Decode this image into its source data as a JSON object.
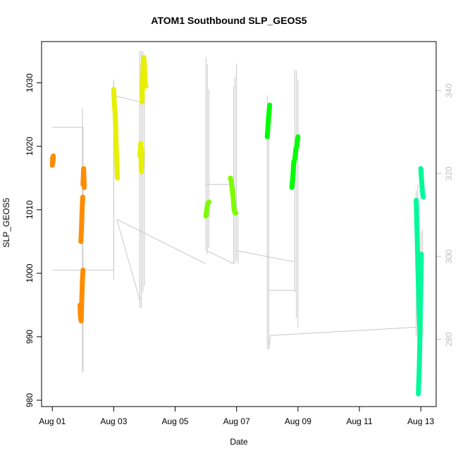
{
  "chart_data": {
    "type": "line",
    "title": "ATOM1 Southbound SLP_GEOS5",
    "xlabel": "Date",
    "ylabel": "SLP_GEOS5",
    "xlim": [
      -0.35,
      12.5
    ],
    "ylim": [
      979,
      1036.5
    ],
    "y2lim": [
      263.8,
      351.8
    ],
    "x_ticks": [
      {
        "value": 0,
        "label": "Aug 01"
      },
      {
        "value": 2,
        "label": "Aug 03"
      },
      {
        "value": 4,
        "label": "Aug 05"
      },
      {
        "value": 6,
        "label": "Aug 07"
      },
      {
        "value": 8,
        "label": "Aug 09"
      },
      {
        "value": 10,
        "label": "Aug 11"
      },
      {
        "value": 12,
        "label": "Aug 13"
      }
    ],
    "y_ticks": [
      980,
      990,
      1000,
      1010,
      1020,
      1030
    ],
    "y2_ticks": [
      280,
      300,
      320,
      340
    ],
    "grid": false,
    "background_series": {
      "name": "track",
      "color": "#c8c8c8",
      "x": [
        0.0,
        0.0,
        1.0,
        1.0,
        0.98,
        1.0,
        2.0,
        2.1,
        2.0,
        2.0,
        2.85,
        2.9,
        2.85,
        2.95,
        2.9,
        2.15,
        2.1,
        5.0,
        5.0,
        6.0,
        5.95,
        6.0,
        6.0,
        5.05,
        5.1,
        7.9,
        7.9,
        7.0,
        7.05,
        8.0,
        8.0,
        7.05,
        7.1,
        11.8,
        11.8,
        12.0,
        12.05,
        12.0
      ],
      "y": [
        1023,
        1000.5,
        1023,
        984.5,
        1026,
        1000.5,
        1030.5,
        999,
        1027.5,
        1028,
        1027,
        995.7,
        1015,
        994.5,
        1023,
        1008.5,
        1031,
        1003.5,
        1034,
        1001.5,
        1033,
        1004,
        1004,
        1004,
        1029.7,
        1001.8,
        1032,
        997.3,
        988,
        997.3,
        997.3,
        992,
        990.2,
        991.5,
        1013.8,
        989,
        1007,
        1006
      ],
      "segments": [
        {
          "x": [
            0.0,
            1.0,
            1.0
          ],
          "y": [
            1023,
            1023,
            984.5
          ]
        },
        {
          "x": [
            0.0,
            2.0,
            2.0
          ],
          "y": [
            1000.5,
            1000.5,
            1030.5
          ]
        },
        {
          "x": [
            0.98,
            0.98
          ],
          "y": [
            984.5,
            1026
          ]
        },
        {
          "x": [
            2.0,
            2.0
          ],
          "y": [
            999,
            1030.5
          ]
        },
        {
          "x": [
            2.0,
            2.85,
            2.85
          ],
          "y": [
            1028,
            1027,
            1035
          ]
        },
        {
          "x": [
            2.1,
            2.85
          ],
          "y": [
            1008.5,
            995.7
          ]
        },
        {
          "x": [
            2.85,
            2.85
          ],
          "y": [
            994.5,
            1035
          ]
        },
        {
          "x": [
            2.9,
            2.9
          ],
          "y": [
            994.5,
            1035
          ]
        },
        {
          "x": [
            2.95,
            2.95
          ],
          "y": [
            997,
            1035
          ]
        },
        {
          "x": [
            3.0,
            3.0
          ],
          "y": [
            998,
            1033
          ]
        },
        {
          "x": [
            2.1,
            5.0
          ],
          "y": [
            1008.5,
            1001.5
          ]
        },
        {
          "x": [
            5.0,
            5.0
          ],
          "y": [
            1003.5,
            1034
          ]
        },
        {
          "x": [
            5.05,
            5.05
          ],
          "y": [
            1003,
            1033
          ]
        },
        {
          "x": [
            5.1,
            5.1
          ],
          "y": [
            1004,
            1029
          ]
        },
        {
          "x": [
            5.0,
            5.9
          ],
          "y": [
            1014,
            1014
          ]
        },
        {
          "x": [
            5.05,
            5.9
          ],
          "y": [
            1003.5,
            1001.5
          ]
        },
        {
          "x": [
            5.9,
            5.9
          ],
          "y": [
            1001.5,
            1029.5
          ]
        },
        {
          "x": [
            5.95,
            5.95
          ],
          "y": [
            1001.5,
            1031
          ]
        },
        {
          "x": [
            6.0,
            6.0
          ],
          "y": [
            1002,
            1033
          ]
        },
        {
          "x": [
            6.05,
            6.05
          ],
          "y": [
            1001.5,
            1009
          ]
        },
        {
          "x": [
            6.05,
            7.9
          ],
          "y": [
            1003.5,
            1001.8
          ]
        },
        {
          "x": [
            7.0,
            7.0
          ],
          "y": [
            988,
            1028
          ]
        },
        {
          "x": [
            7.05,
            7.05
          ],
          "y": [
            988,
            1023
          ]
        },
        {
          "x": [
            7.05,
            7.9
          ],
          "y": [
            997.3,
            997.3
          ]
        },
        {
          "x": [
            7.9,
            7.9
          ],
          "y": [
            997,
            1032
          ]
        },
        {
          "x": [
            7.95,
            7.95
          ],
          "y": [
            993,
            1032
          ]
        },
        {
          "x": [
            8.0,
            8.0
          ],
          "y": [
            991.5,
            1030.5
          ]
        },
        {
          "x": [
            7.05,
            7.1,
            11.85
          ],
          "y": [
            988,
            990.2,
            991.5
          ]
        },
        {
          "x": [
            11.85,
            11.85
          ],
          "y": [
            990,
            1013
          ]
        },
        {
          "x": [
            11.9,
            11.9
          ],
          "y": [
            992,
            1014
          ]
        },
        {
          "x": [
            12.0,
            12.0
          ],
          "y": [
            989,
            1006.5
          ]
        },
        {
          "x": [
            12.05,
            12.05
          ],
          "y": [
            990,
            1007
          ]
        }
      ]
    },
    "series": [
      {
        "color": "#ff8c00",
        "segments": [
          {
            "x": [
              0.0,
              0.01,
              0.02,
              0.03
            ],
            "y": [
              1017,
              1018.2,
              1017.5,
              1018.5
            ]
          },
          {
            "x": [
              0.9,
              0.92,
              0.94,
              0.96,
              0.98,
              1.0
            ],
            "y": [
              995,
              993,
              992.5,
              996,
              999,
              1000.5
            ]
          },
          {
            "x": [
              0.93,
              0.95,
              0.97,
              0.99
            ],
            "y": [
              1005,
              1007,
              1010,
              1012
            ]
          },
          {
            "x": [
              1.0,
              1.02,
              1.04
            ],
            "y": [
              1014,
              1016.5,
              1013.5
            ]
          }
        ]
      },
      {
        "color": "#e6f000",
        "segments": [
          {
            "x": [
              2.0,
              2.02,
              2.05,
              2.08,
              2.1,
              2.12
            ],
            "y": [
              1029,
              1026.5,
              1025,
              1020,
              1018,
              1015
            ]
          },
          {
            "x": [
              2.85,
              2.88,
              2.9,
              2.92
            ],
            "y": [
              1018.5,
              1020.5,
              1016,
              1019.5
            ]
          },
          {
            "x": [
              2.92,
              2.94,
              2.96,
              2.98,
              3.0,
              3.02,
              3.05
            ],
            "y": [
              1027,
              1030,
              1033,
              1034,
              1032.5,
              1030,
              1029.5
            ]
          }
        ]
      },
      {
        "color": "#7cfc00",
        "segments": [
          {
            "x": [
              5.0,
              5.03,
              5.06,
              5.1
            ],
            "y": [
              1009,
              1010,
              1011,
              1011.2
            ]
          },
          {
            "x": [
              5.8,
              5.83,
              5.86,
              5.89,
              5.92,
              5.95,
              5.98
            ],
            "y": [
              1015,
              1014.5,
              1013,
              1012,
              1010,
              1009.5,
              1009.5
            ]
          }
        ]
      },
      {
        "color": "#00ff00",
        "segments": [
          {
            "x": [
              7.0,
              7.02,
              7.04,
              7.06,
              7.08
            ],
            "y": [
              1021.5,
              1023,
              1024.5,
              1025.5,
              1026.5
            ]
          },
          {
            "x": [
              7.8,
              7.83,
              7.86,
              7.9
            ],
            "y": [
              1013.5,
              1015,
              1017.5,
              1018
            ]
          },
          {
            "x": [
              7.9,
              7.93,
              7.96,
              8.0
            ],
            "y": [
              1018,
              1019.5,
              1020,
              1021.5
            ]
          }
        ]
      },
      {
        "color": "#00fa9a",
        "segments": [
          {
            "x": [
              11.85,
              11.88,
              11.91,
              11.94,
              11.97
            ],
            "y": [
              1011.5,
              1006,
              1000,
              995,
              990
            ]
          },
          {
            "x": [
              11.92,
              11.95,
              11.98,
              12.0,
              12.02
            ],
            "y": [
              981,
              985,
              992,
              998,
              1003
            ]
          },
          {
            "x": [
              12.0,
              12.02,
              12.05,
              12.08
            ],
            "y": [
              1016.5,
              1015,
              1013,
              1012
            ]
          }
        ]
      }
    ]
  }
}
